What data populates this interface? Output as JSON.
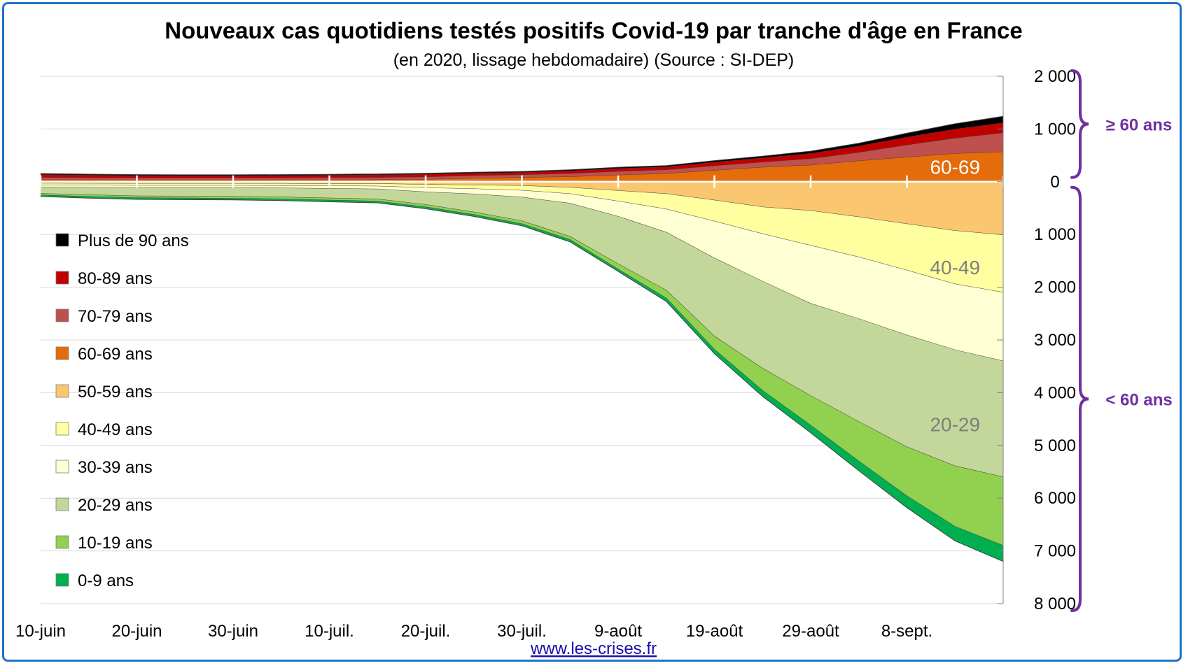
{
  "chart_data": {
    "type": "area",
    "title": "Nouveaux cas quotidiens testés positifs Covid-19 par tranche d'âge en France",
    "subtitle": "(en 2020, lissage hebdomadaire) (Source : SI-DEP)",
    "source_link": "www.les-crises.fr",
    "x_tick_labels": [
      "10-juin",
      "20-juin",
      "30-juin",
      "10-juil.",
      "20-juil.",
      "30-juil.",
      "9-août",
      "19-août",
      "29-août",
      "8-sept."
    ],
    "y_tick_labels": [
      "2 000",
      "1 000",
      "0",
      "1 000",
      "2 000",
      "3 000",
      "4 000",
      "5 000",
      "6 000",
      "7 000",
      "8 000"
    ],
    "y_ticks": [
      2000,
      1000,
      0,
      -1000,
      -2000,
      -3000,
      -4000,
      -5000,
      -6000,
      -7000,
      -8000
    ],
    "ylim": [
      -8000,
      2000
    ],
    "x": [
      "2020-06-10",
      "2020-06-15",
      "2020-06-20",
      "2020-06-25",
      "2020-06-30",
      "2020-07-05",
      "2020-07-10",
      "2020-07-15",
      "2020-07-20",
      "2020-07-25",
      "2020-07-30",
      "2020-08-04",
      "2020-08-09",
      "2020-08-14",
      "2020-08-19",
      "2020-08-24",
      "2020-08-29",
      "2020-09-03",
      "2020-09-08",
      "2020-09-13",
      "2020-09-18"
    ],
    "colors": {
      "s90": "#000000",
      "s80": "#c00000",
      "s70": "#c0504d",
      "s60": "#e46c0a",
      "s50": "#fac66f",
      "s40": "#ffff9f",
      "s30": "#ffffd4",
      "s20": "#c4d79b",
      "s10": "#92d050",
      "s0": "#00b050",
      "edge": "#404040",
      "bracket": "#7030a0"
    },
    "above_zero": [
      {
        "name": "60-69 ans",
        "color_key": "s60",
        "values": [
          40,
          38,
          37,
          36,
          36,
          38,
          40,
          42,
          50,
          70,
          85,
          100,
          130,
          160,
          220,
          280,
          320,
          400,
          470,
          540,
          570
        ]
      },
      {
        "name": "70-79 ans",
        "color_key": "s70",
        "values": [
          45,
          40,
          38,
          37,
          37,
          38,
          40,
          42,
          45,
          50,
          50,
          60,
          70,
          70,
          85,
          95,
          120,
          160,
          230,
          290,
          360
        ]
      },
      {
        "name": "80-89 ans",
        "color_key": "s80",
        "values": [
          55,
          50,
          46,
          44,
          44,
          45,
          46,
          48,
          50,
          45,
          45,
          50,
          55,
          55,
          70,
          80,
          100,
          120,
          150,
          170,
          190
        ]
      },
      {
        "name": "Plus de 90 ans",
        "color_key": "s90",
        "values": [
          15,
          15,
          14,
          14,
          14,
          14,
          15,
          15,
          15,
          15,
          15,
          15,
          20,
          20,
          25,
          30,
          40,
          50,
          70,
          100,
          120
        ]
      }
    ],
    "below_zero": [
      {
        "name": "50-59 ans",
        "color_key": "s50",
        "values": [
          30,
          32,
          34,
          34,
          34,
          35,
          38,
          40,
          55,
          65,
          75,
          110,
          170,
          230,
          350,
          480,
          550,
          670,
          800,
          930,
          1010
        ]
      },
      {
        "name": "40-49 ans",
        "color_key": "s40",
        "values": [
          35,
          36,
          38,
          38,
          38,
          40,
          42,
          45,
          60,
          70,
          90,
          120,
          200,
          290,
          400,
          510,
          660,
          760,
          880,
          1010,
          1090
        ]
      },
      {
        "name": "30-39 ans",
        "color_key": "s30",
        "values": [
          40,
          42,
          44,
          44,
          44,
          46,
          50,
          55,
          80,
          100,
          130,
          180,
          290,
          440,
          700,
          900,
          1100,
          1170,
          1230,
          1250,
          1300
        ]
      },
      {
        "name": "20-29 ans",
        "color_key": "s20",
        "values": [
          120,
          140,
          155,
          160,
          165,
          170,
          180,
          190,
          240,
          340,
          450,
          630,
          900,
          1100,
          1480,
          1650,
          1750,
          1950,
          2120,
          2200,
          2200
        ]
      },
      {
        "name": "10-19 ans",
        "color_key": "s10",
        "values": [
          30,
          33,
          35,
          36,
          36,
          37,
          40,
          40,
          45,
          50,
          55,
          60,
          100,
          150,
          250,
          420,
          560,
          750,
          930,
          1150,
          1300
        ]
      },
      {
        "name": "0-9 ans",
        "color_key": "s0",
        "values": [
          25,
          27,
          28,
          28,
          28,
          29,
          30,
          30,
          32,
          33,
          35,
          40,
          40,
          60,
          80,
          110,
          140,
          180,
          220,
          270,
          300
        ]
      }
    ],
    "legend": [
      {
        "label": "Plus de 90 ans",
        "color_key": "s90"
      },
      {
        "label": "80-89 ans",
        "color_key": "s80"
      },
      {
        "label": "70-79 ans",
        "color_key": "s70"
      },
      {
        "label": "60-69 ans",
        "color_key": "s60"
      },
      {
        "label": "50-59 ans",
        "color_key": "s50"
      },
      {
        "label": "40-49 ans",
        "color_key": "s40"
      },
      {
        "label": "30-39 ans",
        "color_key": "s30"
      },
      {
        "label": "20-29 ans",
        "color_key": "s20"
      },
      {
        "label": "10-19 ans",
        "color_key": "s10"
      },
      {
        "label": "0-9 ans",
        "color_key": "s0"
      }
    ],
    "legend_placement": "left",
    "area_labels": [
      {
        "text": "60-69",
        "x": "2020-09-13",
        "y": 280,
        "color": "#ffffff"
      },
      {
        "text": "40-49",
        "x": "2020-09-13",
        "y": -1620,
        "color": "#7f7f7f"
      },
      {
        "text": "20-29",
        "x": "2020-09-13",
        "y": -4600,
        "color": "#7f7f7f"
      }
    ],
    "brackets": [
      {
        "label": "≥ 60 ans",
        "from": 2000,
        "to": 0
      },
      {
        "label": "< 60 ans",
        "from": 0,
        "to": -8000
      }
    ],
    "grid": true
  }
}
